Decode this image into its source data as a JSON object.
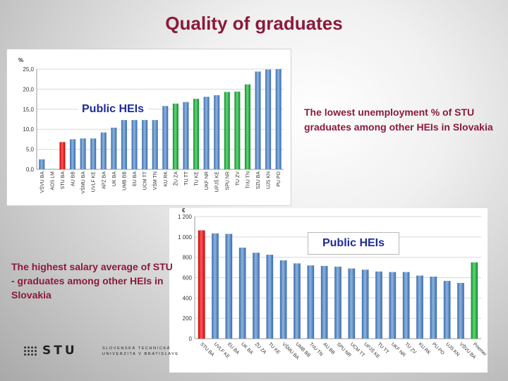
{
  "slide_title": "Quality of graduates",
  "captions": {
    "unemployment": "The lowest unemployment % of STU graduates among other HEIs in Slovakia",
    "salary": "The highest salary average of STU - graduates among other HEIs in Slovakia"
  },
  "logo": {
    "mark": "STU",
    "line1": "SLOVENSKÁ TECHNICKÁ",
    "line2": "UNIVERZITA V BRATISLAVE"
  },
  "colors": {
    "default_bar": "#4a7ebb",
    "highlight_stu": "#e81515",
    "highlight_green": "#1fae3b",
    "title": "#8b1a3a"
  },
  "chart_data": [
    {
      "type": "bar",
      "title": "",
      "ylabel": "%",
      "label_box": "Public HEIs",
      "ylim": [
        0,
        25
      ],
      "yticks": [
        "0,0",
        "5,0",
        "10,0",
        "15,0",
        "20,0",
        "25,0"
      ],
      "categories": [
        "VŠVU BA",
        "AOS LM",
        "STU BA",
        "AU BB",
        "VŠMU BA",
        "UVLF KE",
        "APZ BA",
        "UK BA",
        "UMB BB",
        "EU BA",
        "UCM TT",
        "VŠM TN",
        "KU RK",
        "ŽU ZA",
        "TU TT",
        "TU KE",
        "UKF NR",
        "UPJŠ KE",
        "SPU NR",
        "TU ZV",
        "TnU TN",
        "SZU BA",
        "UJS KN",
        "PU PO"
      ],
      "values": [
        2.5,
        0.1,
        6.8,
        7.5,
        7.7,
        7.7,
        9.2,
        10.4,
        12.3,
        12.3,
        12.3,
        12.3,
        15.8,
        16.4,
        16.8,
        17.6,
        18.1,
        18.5,
        19.3,
        19.4,
        21.2,
        24.4,
        24.9,
        25.0
      ],
      "highlight": {
        "STU BA": "red",
        "ŽU ZA": "green",
        "TU KE": "green",
        "SPU NR": "green",
        "TU ZV": "green",
        "TnU TN": "green"
      }
    },
    {
      "type": "bar",
      "title": "",
      "ylabel": "€",
      "label_box": "Public HEIs",
      "ylim": [
        0,
        1200
      ],
      "yticks": [
        "0",
        "200",
        "400",
        "600",
        "800",
        "1 000",
        "1 200"
      ],
      "categories": [
        "STU BA",
        "UVLF KE",
        "EU BA",
        "UK BA",
        "ŽU ZA",
        "TU KE",
        "VŠMU BA",
        "UMB BB",
        "TnU TN",
        "AU BB",
        "SPU NR",
        "UCM TT",
        "UPJŠ KE",
        "TU TT",
        "UKF NR",
        "TU ZV",
        "KU RK",
        "PU PO",
        "UJS KN",
        "VŠVU BA",
        "Priemer"
      ],
      "values": [
        1065,
        1035,
        1030,
        895,
        845,
        825,
        770,
        740,
        720,
        715,
        708,
        690,
        678,
        660,
        655,
        655,
        620,
        610,
        568,
        548,
        750
      ],
      "highlight": {
        "STU BA": "red",
        "Priemer": "green"
      }
    }
  ]
}
